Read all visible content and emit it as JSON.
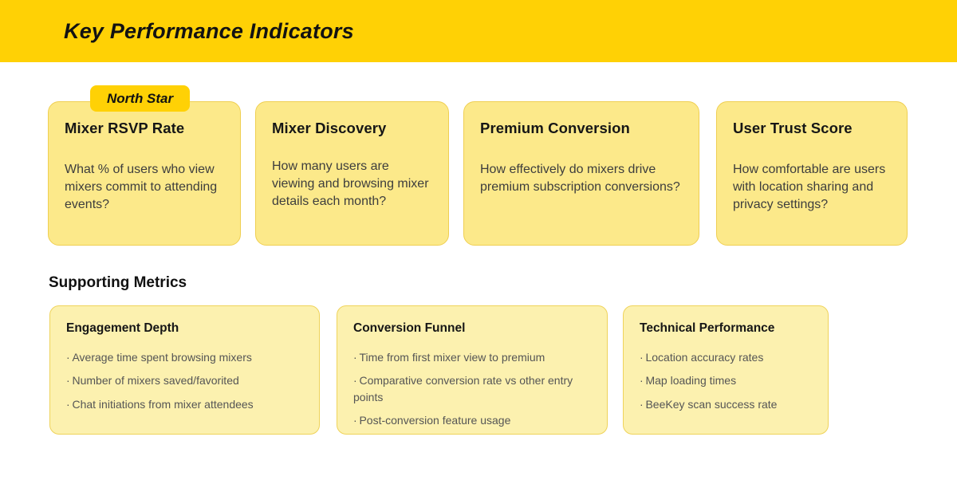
{
  "header": {
    "title": "Key Performance Indicators"
  },
  "badge": {
    "label": "North Star"
  },
  "kpi_cards": [
    {
      "title": "Mixer RSVP Rate",
      "description": "What % of users who view mixers commit to attending events?"
    },
    {
      "title": "Mixer Discovery",
      "description": "How many users are viewing and browsing mixer details each month?"
    },
    {
      "title": "Premium Conversion",
      "description": "How effectively do mixers drive premium subscription conversions?"
    },
    {
      "title": "User Trust Score",
      "description": "How comfortable are users with location sharing and privacy settings?"
    }
  ],
  "supporting": {
    "heading": "Supporting Metrics",
    "cards": [
      {
        "title": "Engagement Depth",
        "bullets": [
          "Average time spent browsing mixers",
          "Number of mixers saved/favorited",
          "Chat initiations from mixer attendees"
        ]
      },
      {
        "title": "Conversion Funnel",
        "bullets": [
          "Time from first mixer view to premium",
          "Comparative conversion rate vs other entry points",
          "Post-conversion feature usage"
        ]
      },
      {
        "title": "Technical Performance",
        "bullets": [
          "Location accuracy rates",
          "Map loading times",
          "BeeKey scan success rate"
        ]
      }
    ]
  },
  "colors": {
    "accent_yellow": "#FFD105",
    "kpi_card_bg": "#FCE98A",
    "kpi_card_border": "#EFCF52",
    "supporting_card_bg": "#FCF1AF",
    "supporting_card_border": "#EFD35A",
    "title_text": "#121212",
    "body_text": "#3D3D3D",
    "bullet_text": "#555555"
  }
}
